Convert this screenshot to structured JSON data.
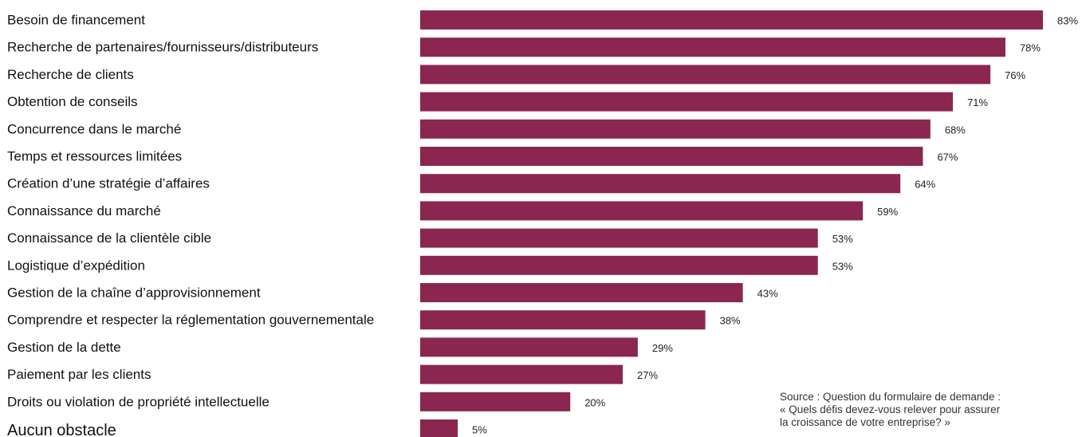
{
  "chart_data": {
    "type": "bar",
    "orientation": "horizontal",
    "bar_color": "#8B2650",
    "value_suffix": "%",
    "xlim": [
      0,
      83
    ],
    "grid": false,
    "categories": [
      "Besoin de financement",
      "Recherche de partenaires/fournisseurs/distributeurs",
      "Recherche de clients",
      "Obtention de conseils",
      "Concurrence dans le marché",
      "Temps et ressources limitées",
      "Création d’une stratégie d’affaires",
      "Connaissance du marché",
      "Connaissance de la clientèle cible",
      "Logistique d’expédition",
      "Gestion de la chaîne d’approvisionnement",
      "Comprendre et respecter la réglementation gouvernementale",
      "Gestion de la dette",
      "Paiement par les clients",
      "Droits ou violation de propriété intellectuelle",
      "Aucun obstacle"
    ],
    "values": [
      83,
      78,
      76,
      71,
      68,
      67,
      64,
      59,
      53,
      53,
      43,
      38,
      29,
      27,
      20,
      5
    ],
    "value_labels": [
      "83%",
      "78%",
      "76%",
      "71%",
      "68%",
      "67%",
      "64%",
      "59%",
      "53%",
      "53%",
      "43%",
      "38%",
      "29%",
      "27%",
      "20%",
      "5%"
    ]
  },
  "source": {
    "lines": [
      "Source : Question du formulaire de demande :",
      "« Quels défis devez-vous relever pour assurer",
      "la croissance de votre entreprise? »"
    ]
  }
}
